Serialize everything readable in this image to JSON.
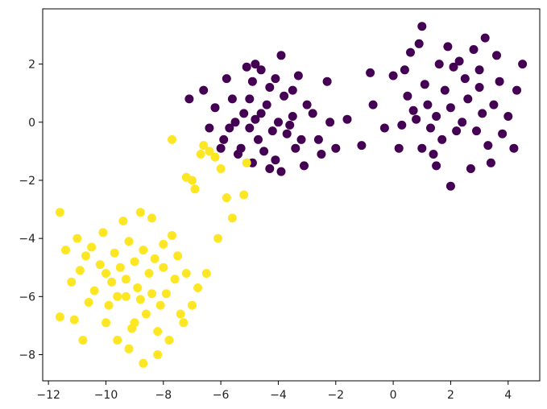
{
  "chart_data": {
    "type": "scatter",
    "title": "",
    "xlabel": "",
    "ylabel": "",
    "xlim": [
      -12.2,
      5.1
    ],
    "ylim": [
      -8.9,
      3.9
    ],
    "grid": false,
    "legend": "none",
    "x_ticks": [
      -12,
      -10,
      -8,
      -6,
      -4,
      -2,
      0,
      2,
      4
    ],
    "x_tick_labels": [
      "−12",
      "−10",
      "−8",
      "−6",
      "−4",
      "−2",
      "0",
      "2",
      "4"
    ],
    "y_ticks": [
      2,
      0,
      -2,
      -4,
      -6,
      -8
    ],
    "y_tick_labels": [
      "2",
      "0",
      "−2",
      "−4",
      "−6",
      "−8"
    ],
    "series": [
      {
        "color": "#440154",
        "points": [
          [
            -5.6,
            0.8
          ],
          [
            -4.6,
            1.8
          ],
          [
            -3.9,
            2.3
          ],
          [
            -4.3,
            1.2
          ],
          [
            -5.2,
            0.3
          ],
          [
            -4.8,
            0.1
          ],
          [
            -3.7,
            -0.4
          ],
          [
            -5.9,
            -0.6
          ],
          [
            -4.1,
            -1.3
          ],
          [
            -3.4,
            -0.9
          ],
          [
            -6.2,
            0.5
          ],
          [
            -2.8,
            0.3
          ],
          [
            -3.1,
            -1.5
          ],
          [
            -5.4,
            -1.1
          ],
          [
            -4.9,
            1.4
          ],
          [
            -2.3,
            1.4
          ],
          [
            -2.2,
            0.0
          ],
          [
            -1.6,
            0.1
          ],
          [
            -2.0,
            -0.9
          ],
          [
            -6.6,
            1.1
          ],
          [
            -7.1,
            0.8
          ],
          [
            -5.0,
            -0.2
          ],
          [
            -4.4,
            0.6
          ],
          [
            -3.8,
            0.9
          ],
          [
            -3.5,
            0.2
          ],
          [
            -4.2,
            -0.3
          ],
          [
            -4.7,
            -0.6
          ],
          [
            -5.3,
            -0.9
          ],
          [
            -3.9,
            -1.7
          ],
          [
            -3.0,
            0.6
          ],
          [
            -4.5,
            -1.0
          ],
          [
            -5.7,
            -0.2
          ],
          [
            -3.3,
            1.6
          ],
          [
            -5.1,
            1.9
          ],
          [
            -4.0,
            0.0
          ],
          [
            -4.6,
            0.3
          ],
          [
            -3.6,
            -0.1
          ],
          [
            -5.5,
            0.0
          ],
          [
            -2.6,
            -0.6
          ],
          [
            -6.0,
            -0.9
          ],
          [
            -4.3,
            -1.6
          ],
          [
            -5.8,
            1.5
          ],
          [
            -4.8,
            2.0
          ],
          [
            -2.5,
            -1.1
          ],
          [
            -6.4,
            -0.2
          ],
          [
            -3.2,
            -0.6
          ],
          [
            -5.0,
            0.8
          ],
          [
            -4.1,
            1.5
          ],
          [
            -3.5,
            1.1
          ],
          [
            -4.9,
            -1.4
          ],
          [
            1.0,
            3.3
          ],
          [
            0.9,
            2.7
          ],
          [
            1.6,
            2.0
          ],
          [
            2.3,
            2.1
          ],
          [
            3.0,
            1.8
          ],
          [
            3.6,
            2.3
          ],
          [
            3.2,
            2.9
          ],
          [
            2.8,
            2.5
          ],
          [
            1.9,
            2.6
          ],
          [
            0.6,
            2.4
          ],
          [
            0.0,
            1.6
          ],
          [
            -0.8,
            1.7
          ],
          [
            -0.7,
            0.6
          ],
          [
            -1.1,
            -0.8
          ],
          [
            -0.3,
            -0.2
          ],
          [
            0.3,
            -0.1
          ],
          [
            0.7,
            0.4
          ],
          [
            1.2,
            0.6
          ],
          [
            1.5,
            0.2
          ],
          [
            2.0,
            0.5
          ],
          [
            2.6,
            0.8
          ],
          [
            3.1,
            0.3
          ],
          [
            3.5,
            0.6
          ],
          [
            4.5,
            2.0
          ],
          [
            4.3,
            1.1
          ],
          [
            4.0,
            0.2
          ],
          [
            3.8,
            -0.4
          ],
          [
            4.2,
            -0.9
          ],
          [
            3.3,
            -0.8
          ],
          [
            2.7,
            -1.6
          ],
          [
            2.0,
            -2.2
          ],
          [
            1.5,
            -1.5
          ],
          [
            1.0,
            -0.9
          ],
          [
            0.2,
            -0.9
          ],
          [
            0.5,
            0.9
          ],
          [
            1.1,
            1.3
          ],
          [
            1.8,
            1.1
          ],
          [
            2.5,
            1.5
          ],
          [
            3.0,
            1.2
          ],
          [
            2.2,
            -0.3
          ],
          [
            1.7,
            -0.6
          ],
          [
            2.9,
            -0.3
          ],
          [
            1.3,
            -0.2
          ],
          [
            0.8,
            0.1
          ],
          [
            2.4,
            0.0
          ],
          [
            3.7,
            1.4
          ],
          [
            0.4,
            1.8
          ],
          [
            2.1,
            1.9
          ],
          [
            1.4,
            -1.1
          ],
          [
            3.4,
            -1.4
          ]
        ]
      },
      {
        "color": "#fde725",
        "points": [
          [
            -11.6,
            -3.1
          ],
          [
            -11.6,
            -6.7
          ],
          [
            -11.1,
            -6.8
          ],
          [
            -10.8,
            -7.5
          ],
          [
            -10.0,
            -6.9
          ],
          [
            -9.6,
            -7.5
          ],
          [
            -9.2,
            -7.8
          ],
          [
            -8.7,
            -8.3
          ],
          [
            -8.2,
            -8.0
          ],
          [
            -7.8,
            -7.5
          ],
          [
            -7.4,
            -6.6
          ],
          [
            -7.0,
            -6.3
          ],
          [
            -6.8,
            -5.7
          ],
          [
            -7.2,
            -5.2
          ],
          [
            -6.5,
            -5.2
          ],
          [
            -6.1,
            -4.0
          ],
          [
            -7.7,
            -3.9
          ],
          [
            -7.5,
            -4.6
          ],
          [
            -8.0,
            -4.2
          ],
          [
            -8.4,
            -3.3
          ],
          [
            -8.8,
            -3.1
          ],
          [
            -9.4,
            -3.4
          ],
          [
            -10.1,
            -3.8
          ],
          [
            -10.5,
            -4.3
          ],
          [
            -11.0,
            -4.0
          ],
          [
            -11.4,
            -4.4
          ],
          [
            -10.9,
            -5.1
          ],
          [
            -10.4,
            -5.8
          ],
          [
            -9.9,
            -6.3
          ],
          [
            -9.3,
            -6.0
          ],
          [
            -8.9,
            -5.7
          ],
          [
            -8.5,
            -5.2
          ],
          [
            -9.0,
            -4.8
          ],
          [
            -9.5,
            -5.0
          ],
          [
            -8.1,
            -6.3
          ],
          [
            -7.9,
            -5.9
          ],
          [
            -8.6,
            -6.6
          ],
          [
            -9.1,
            -7.1
          ],
          [
            -9.8,
            -5.5
          ],
          [
            -10.2,
            -4.9
          ],
          [
            -8.3,
            -4.7
          ],
          [
            -7.6,
            -5.4
          ],
          [
            -8.7,
            -4.4
          ],
          [
            -9.7,
            -4.5
          ],
          [
            -10.6,
            -6.2
          ],
          [
            -9.3,
            -5.4
          ],
          [
            -8.8,
            -6.1
          ],
          [
            -9.6,
            -6.0
          ],
          [
            -8.0,
            -5.0
          ],
          [
            -8.4,
            -5.9
          ],
          [
            -7.7,
            -0.6
          ],
          [
            -6.6,
            -0.8
          ],
          [
            -6.4,
            -1.0
          ],
          [
            -6.2,
            -1.2
          ],
          [
            -6.0,
            -1.6
          ],
          [
            -7.2,
            -1.9
          ],
          [
            -6.9,
            -2.3
          ],
          [
            -5.8,
            -2.6
          ],
          [
            -5.6,
            -3.3
          ],
          [
            -5.2,
            -2.5
          ],
          [
            -5.1,
            -1.4
          ],
          [
            -6.7,
            -1.1
          ],
          [
            -7.0,
            -2.0
          ],
          [
            -9.2,
            -4.1
          ],
          [
            -10.7,
            -4.6
          ],
          [
            -11.2,
            -5.5
          ],
          [
            -10.0,
            -5.2
          ],
          [
            -9.0,
            -6.9
          ],
          [
            -8.2,
            -7.2
          ],
          [
            -7.3,
            -6.9
          ]
        ]
      }
    ]
  }
}
